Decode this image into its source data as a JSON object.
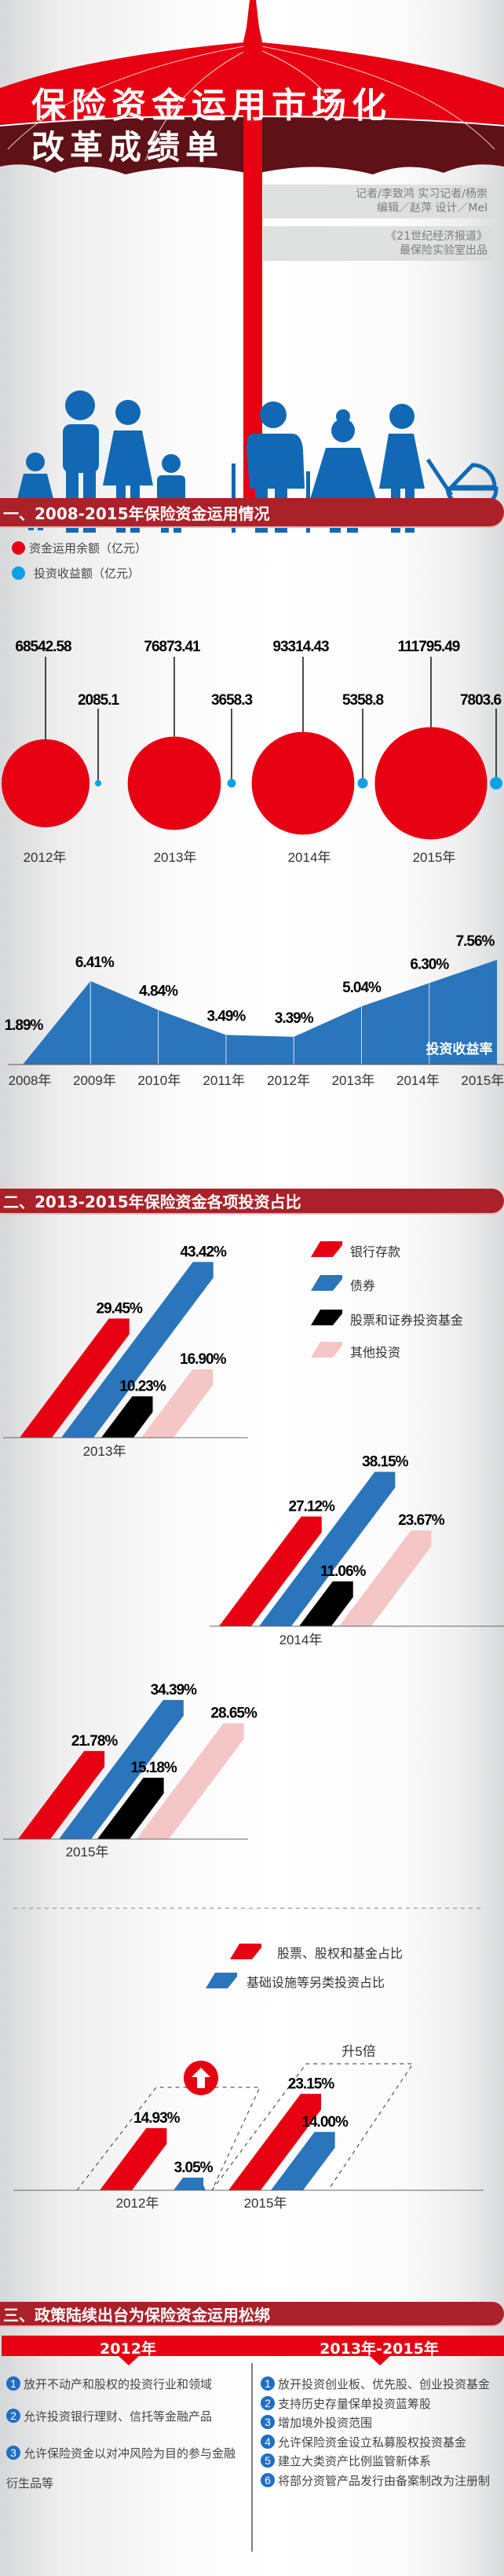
{
  "title": {
    "line1": "保险资金运用市场化",
    "line2": "改革成绩单"
  },
  "credits": {
    "line1": "记者/李致鸿 实习记者/杨崇",
    "line2": "编辑／赵萍 设计／Mel",
    "line3": "《21世纪经济报道》",
    "line4": "最保险实验室出品"
  },
  "colors": {
    "header": "#ab2129",
    "red": "#e60012",
    "blue": "#2a75bb",
    "light_blue": "#0ea0e6",
    "black": "#000000",
    "pink": "#f4c6c6",
    "title_band": "#5e1116"
  },
  "section1": {
    "heading": "一、2008-2015年保险资金运用情况"
  },
  "section2": {
    "heading": "二、2013-2015年保险资金各项投资占比"
  },
  "section3": {
    "heading": "三、政策陆续出台为保险资金运用松绑",
    "columns": [
      {
        "label": "2012年",
        "items": [
          "放开不动产和股权的投资行业和领域",
          "允许投资银行理财、信托等金融产品",
          "允许保险资金以对冲风险为目的参与金融衍生品等"
        ]
      },
      {
        "label": "2013年-2015年",
        "items": [
          "放开投资创业板、优先股、创业投资基金",
          "支持历史存量保单投资蓝筹股",
          "增加境外投资范围",
          "允许保险资金设立私募股权投资基金",
          "建立大类资产比例监管新体系",
          "将部分资管产品发行由备案制改为注册制"
        ]
      }
    ]
  },
  "chart_data": [
    {
      "type": "bubble",
      "categories": [
        "2012年",
        "2013年",
        "2014年",
        "2015年"
      ],
      "series": [
        {
          "name": "资金运用余额（亿元）",
          "values": [
            68542.58,
            76873.41,
            93314.43,
            111795.49
          ],
          "color": "#e60012"
        },
        {
          "name": "投资收益额（亿元）",
          "values": [
            2085.1,
            3658.3,
            5358.8,
            7803.6
          ],
          "color": "#0ea0e6"
        }
      ],
      "legend": "top-left"
    },
    {
      "type": "area",
      "categories": [
        "2008年",
        "2009年",
        "2010年",
        "2011年",
        "2012年",
        "2013年",
        "2014年",
        "2015年"
      ],
      "values": [
        1.89,
        6.41,
        4.84,
        3.49,
        3.39,
        5.04,
        6.3,
        7.56
      ],
      "unit": "%",
      "series_label": "投资收益率",
      "color": "#2a75bb",
      "ylim": [
        1.89,
        9
      ]
    },
    {
      "type": "bar",
      "categories": [
        "2013年",
        "2014年",
        "2015年"
      ],
      "unit": "%",
      "series": [
        {
          "name": "银行存款",
          "values": [
            29.45,
            27.12,
            21.78
          ],
          "color": "#e60012"
        },
        {
          "name": "债券",
          "values": [
            43.42,
            38.15,
            34.39
          ],
          "color": "#2a75bb"
        },
        {
          "name": "股票和证券投资基金",
          "values": [
            10.23,
            11.06,
            15.18
          ],
          "color": "#000000"
        },
        {
          "name": "其他投资",
          "values": [
            16.9,
            23.67,
            28.65
          ],
          "color": "#f4c6c6"
        }
      ],
      "legend": "right"
    },
    {
      "type": "bar",
      "categories": [
        "2012年",
        "2015年"
      ],
      "unit": "%",
      "series": [
        {
          "name": "股票、股权和基金占比",
          "values": [
            14.93,
            23.15
          ],
          "color": "#e60012"
        },
        {
          "name": "基础设施等另类投资占比",
          "values": [
            3.05,
            14.0
          ],
          "color": "#2a75bb"
        }
      ],
      "annotation": "升5倍",
      "legend": "top-right"
    }
  ]
}
